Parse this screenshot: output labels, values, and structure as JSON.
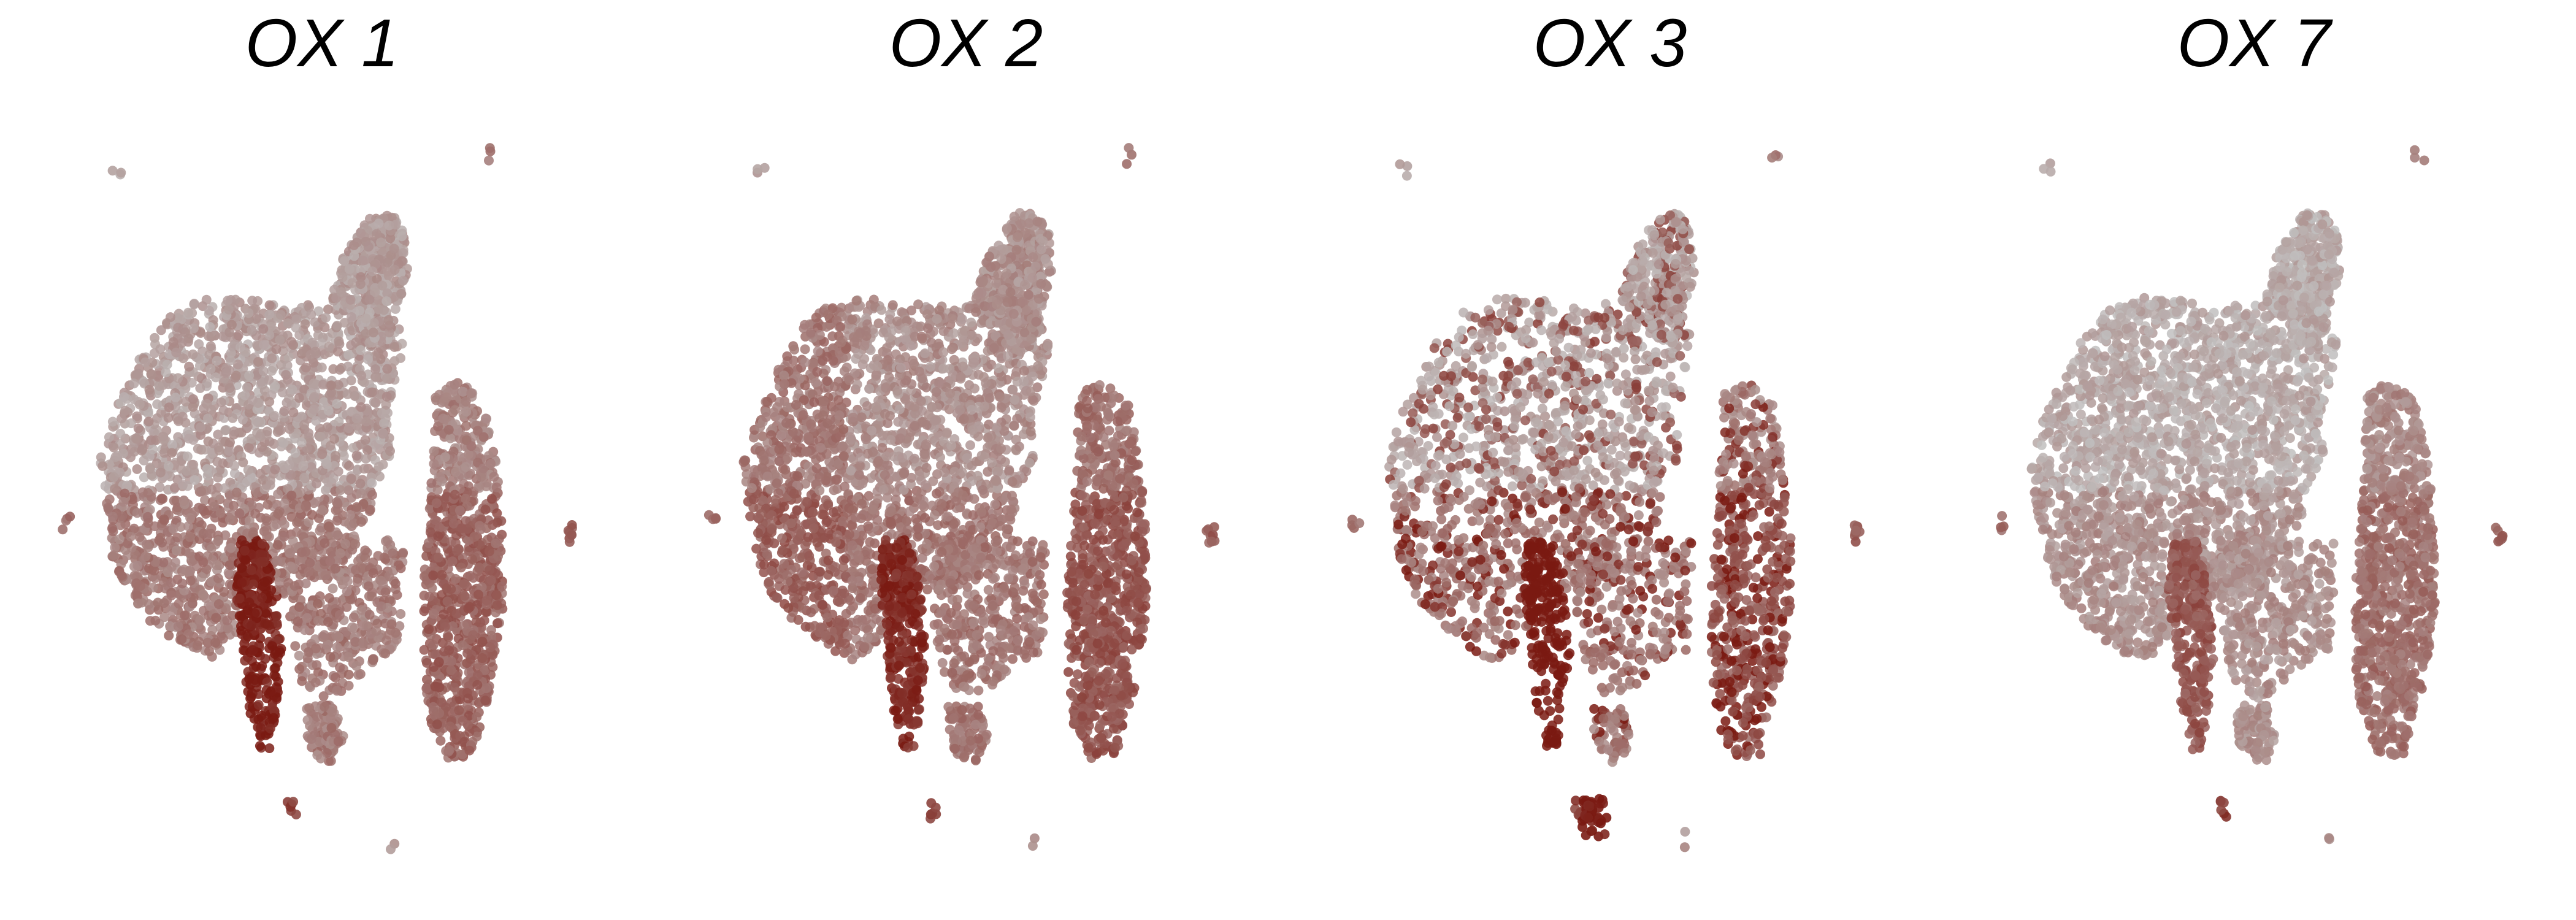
{
  "chart_data": [
    {
      "type": "scatter",
      "title": "OX 1"
    },
    {
      "type": "scatter",
      "title": "OX 2"
    },
    {
      "type": "scatter",
      "title": "OX 3"
    },
    {
      "type": "scatter",
      "title": "OX 7"
    }
  ],
  "colors": {
    "low": "#c2c2c2",
    "high": "#7a1a12",
    "background": "#ffffff"
  }
}
